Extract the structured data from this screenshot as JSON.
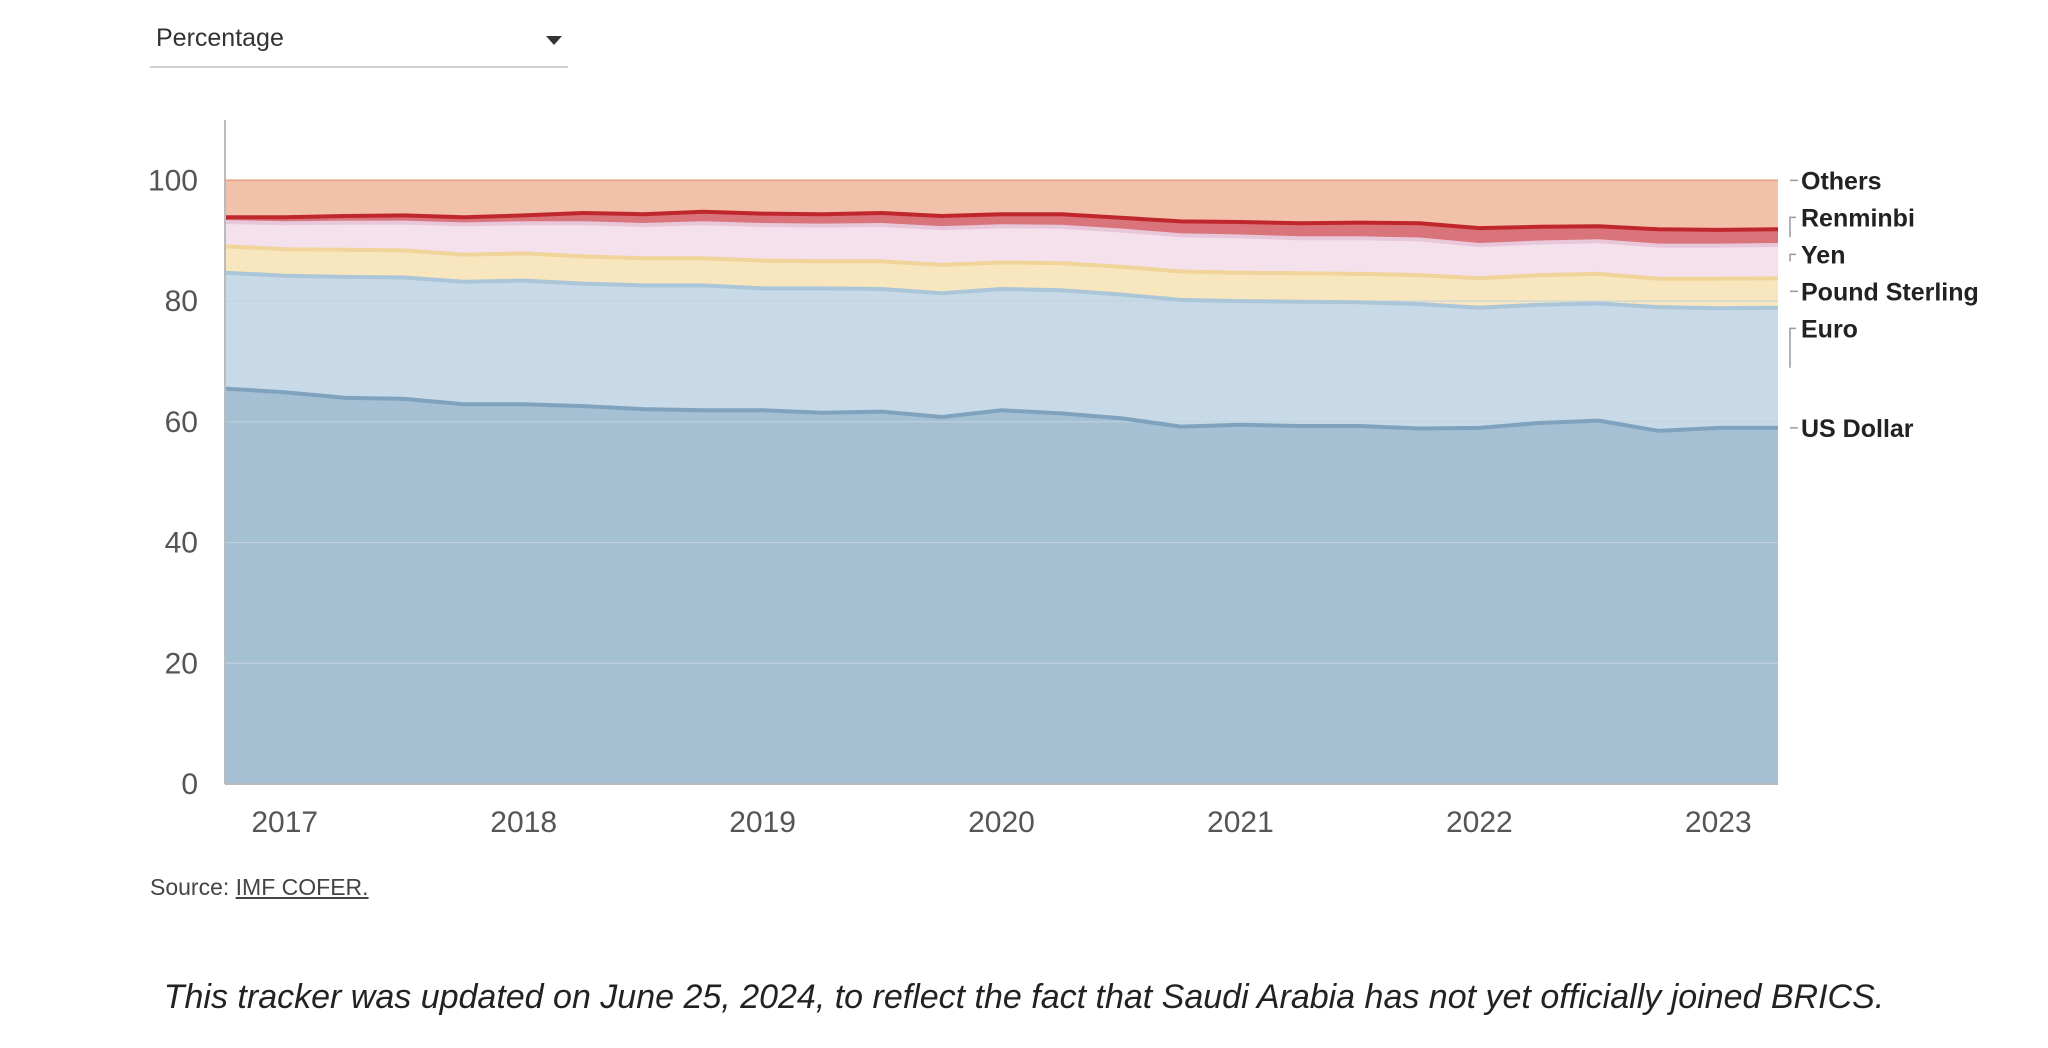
{
  "dropdown": {
    "value": "Percentage"
  },
  "source": {
    "prefix": "Source:",
    "link_text": "IMF COFER."
  },
  "note": "This tracker was updated on June 25, 2024, to reflect the fact that Saudi Arabia has not yet officially joined BRICS.",
  "colors": {
    "usd_fill": "#a5bfd3",
    "usd_line": "#7fa3be",
    "euro_fill": "#c8dae7",
    "euro_line": "#abc6d8",
    "gbp_fill": "#f8e6be",
    "gbp_line": "#f1d49a",
    "yen_fill": "#f4e1ec",
    "yen_line": "#e8c7da",
    "rmb_fill": "#d9747a",
    "rmb_line": "#c0272d",
    "others_fill": "#f2c1aa",
    "others_line": "#e9a98c",
    "grid": "#c3d3df",
    "axis": "#bbbbbb"
  },
  "chart_data": {
    "type": "area",
    "stacked": true,
    "ylim": [
      0,
      110
    ],
    "yticks": [
      0,
      20,
      40,
      60,
      80,
      100
    ],
    "xlim": [
      2016.75,
      2023.25
    ],
    "xticks": [
      "2017",
      "2018",
      "2019",
      "2020",
      "2021",
      "2022",
      "2023"
    ],
    "legend_position": "right",
    "x": [
      2016.75,
      2017.0,
      2017.25,
      2017.5,
      2017.75,
      2018.0,
      2018.25,
      2018.5,
      2018.75,
      2019.0,
      2019.25,
      2019.5,
      2019.75,
      2020.0,
      2020.25,
      2020.5,
      2020.75,
      2021.0,
      2021.25,
      2021.5,
      2021.75,
      2022.0,
      2022.25,
      2022.5,
      2022.75,
      2023.0,
      2023.25
    ],
    "series": [
      {
        "name": "US Dollar",
        "key": "usd",
        "values": [
          65.5,
          64.9,
          64.0,
          63.8,
          62.9,
          62.9,
          62.6,
          62.1,
          61.9,
          61.9,
          61.5,
          61.7,
          60.8,
          61.9,
          61.4,
          60.6,
          59.2,
          59.5,
          59.3,
          59.3,
          58.9,
          59.0,
          59.8,
          60.2,
          58.5,
          59.0,
          59.0
        ]
      },
      {
        "name": "Euro",
        "key": "euro",
        "values": [
          19.2,
          19.3,
          20.0,
          20.1,
          20.3,
          20.5,
          20.3,
          20.5,
          20.7,
          20.2,
          20.6,
          20.3,
          20.5,
          20.1,
          20.4,
          20.5,
          21.0,
          20.5,
          20.6,
          20.5,
          20.6,
          19.9,
          19.6,
          19.4,
          20.5,
          19.8,
          19.9
        ]
      },
      {
        "name": "Pound Sterling",
        "key": "gbp",
        "values": [
          4.4,
          4.4,
          4.5,
          4.5,
          4.5,
          4.5,
          4.5,
          4.5,
          4.5,
          4.6,
          4.5,
          4.6,
          4.7,
          4.4,
          4.5,
          4.6,
          4.7,
          4.7,
          4.7,
          4.7,
          4.8,
          4.9,
          4.9,
          4.9,
          4.7,
          4.9,
          4.9
        ]
      },
      {
        "name": "Yen",
        "key": "yen",
        "values": [
          4.0,
          4.3,
          4.5,
          4.6,
          5.0,
          5.0,
          5.5,
          5.5,
          5.8,
          5.9,
          5.9,
          6.0,
          6.1,
          6.0,
          6.0,
          6.0,
          6.0,
          6.0,
          5.8,
          5.9,
          5.9,
          5.5,
          5.4,
          5.4,
          5.5,
          5.5,
          5.5
        ]
      },
      {
        "name": "Renminbi",
        "key": "rmb",
        "values": [
          0.8,
          1.0,
          1.1,
          1.2,
          1.2,
          1.3,
          1.7,
          1.8,
          1.9,
          1.9,
          1.9,
          2.0,
          2.0,
          2.0,
          2.1,
          2.1,
          2.3,
          2.4,
          2.5,
          2.6,
          2.7,
          2.8,
          2.6,
          2.5,
          2.7,
          2.6,
          2.6
        ]
      },
      {
        "name": "Others",
        "key": "others",
        "values": [
          6.1,
          6.1,
          5.9,
          5.8,
          6.1,
          5.8,
          5.4,
          5.6,
          5.2,
          5.5,
          5.6,
          5.4,
          5.9,
          5.6,
          5.6,
          6.2,
          6.8,
          6.9,
          7.1,
          7.0,
          7.1,
          7.9,
          7.7,
          7.6,
          8.1,
          8.2,
          8.1
        ]
      }
    ]
  }
}
